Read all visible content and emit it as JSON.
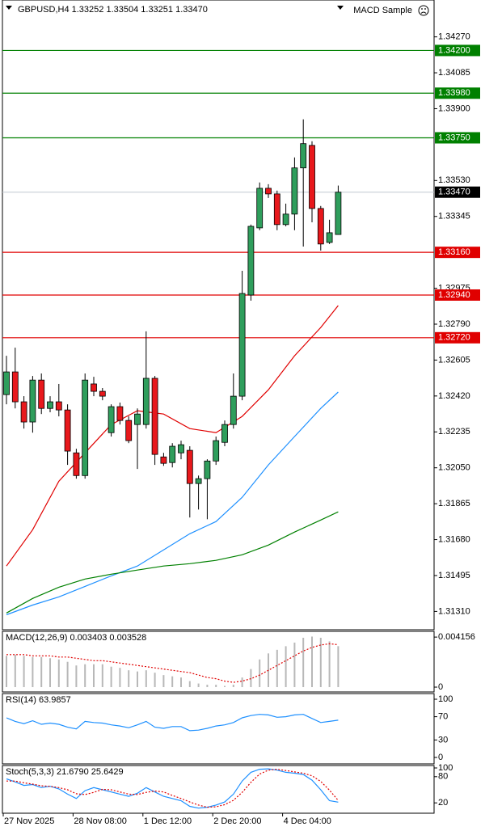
{
  "chart_data": [
    {
      "type": "candlestick",
      "title": "GBPUSD,H4 1.33252 1.33504 1.33251 1.33470",
      "expert": "MACD Sample",
      "ylim": [
        1.3122,
        1.3446
      ],
      "yticks": [
        {
          "value": 1.3427,
          "label": "1.34270"
        },
        {
          "value": 1.34085,
          "label": "1.34085"
        },
        {
          "value": 1.339,
          "label": "1.33900"
        },
        {
          "value": 1.3353,
          "label": "1.33530"
        },
        {
          "value": 1.33345,
          "label": "1.33345"
        },
        {
          "value": 1.32975,
          "label": "1.32975"
        },
        {
          "value": 1.3279,
          "label": "1.32790"
        },
        {
          "value": 1.32605,
          "label": "1.32605"
        },
        {
          "value": 1.3242,
          "label": "1.32420"
        },
        {
          "value": 1.32235,
          "label": "1.32235"
        },
        {
          "value": 1.3205,
          "label": "1.32050"
        },
        {
          "value": 1.31865,
          "label": "1.31865"
        },
        {
          "value": 1.3168,
          "label": "1.31680"
        },
        {
          "value": 1.31495,
          "label": "1.31495"
        },
        {
          "value": 1.3131,
          "label": "1.31310"
        }
      ],
      "xticks": [
        {
          "value": 0,
          "label": "27 Nov 2025"
        },
        {
          "value": 8,
          "label": "28 Nov 08:00"
        },
        {
          "value": 16,
          "label": "1 Dec 12:00"
        },
        {
          "value": 24,
          "label": "2 Dec 20:00"
        },
        {
          "value": 32,
          "label": "4 Dec 04:00"
        }
      ],
      "up_color": "#2f9e5c",
      "down_color": "#e8181c",
      "open": [
        1.32427,
        1.32544,
        1.3239,
        1.32286,
        1.32502,
        1.32356,
        1.3239,
        1.32348,
        1.32127,
        1.3201,
        1.32482,
        1.32444,
        1.32231,
        1.32365,
        1.32294,
        1.32273,
        1.32273,
        1.32511,
        1.32106,
        1.32077,
        1.32127,
        1.3214,
        1.31969,
        1.31994,
        1.32085,
        1.32181,
        1.32273,
        1.32419,
        1.3294,
        1.33286,
        1.3349,
        1.33461,
        1.33303,
        1.33357,
        1.33595,
        1.33711,
        1.33386,
        1.33211,
        1.33252
      ],
      "high": [
        1.32627,
        1.32669,
        1.32419,
        1.32523,
        1.32536,
        1.32419,
        1.32482,
        1.32377,
        1.32148,
        1.32536,
        1.32519,
        1.32461,
        1.32377,
        1.32386,
        1.32315,
        1.32356,
        1.32753,
        1.32523,
        1.32127,
        1.32177,
        1.3219,
        1.32161,
        1.3201,
        1.32094,
        1.32211,
        1.32294,
        1.32536,
        1.33065,
        1.33303,
        1.3352,
        1.33511,
        1.33478,
        1.33411,
        1.33649,
        1.33845,
        1.33732,
        1.33399,
        1.33328,
        1.33504
      ],
      "low": [
        1.32377,
        1.32356,
        1.32252,
        1.32231,
        1.32327,
        1.32336,
        1.32315,
        1.32065,
        1.31994,
        1.31994,
        1.32419,
        1.32398,
        1.32211,
        1.32273,
        1.32177,
        1.32044,
        1.32252,
        1.32065,
        1.3206,
        1.32052,
        1.32094,
        1.31794,
        1.31835,
        1.31785,
        1.32065,
        1.32161,
        1.32252,
        1.32398,
        1.32911,
        1.33274,
        1.3344,
        1.33274,
        1.33294,
        1.33274,
        1.3319,
        1.33315,
        1.33169,
        1.33203,
        1.33251
      ],
      "close": [
        1.32544,
        1.3239,
        1.32286,
        1.32502,
        1.32356,
        1.3239,
        1.32348,
        1.32136,
        1.3201,
        1.32502,
        1.32444,
        1.32419,
        1.32365,
        1.32294,
        1.3219,
        1.32327,
        1.32511,
        1.32119,
        1.32073,
        1.32161,
        1.32169,
        1.31969,
        1.31994,
        1.32085,
        1.3219,
        1.32273,
        1.32419,
        1.32948,
        1.33294,
        1.3349,
        1.33461,
        1.33303,
        1.33357,
        1.33595,
        1.3372,
        1.33386,
        1.33203,
        1.33261,
        1.3347
      ],
      "overlays": [
        {
          "color": "#e00000",
          "x": [
            0,
            3,
            6,
            9,
            12,
            15,
            18,
            21,
            24,
            27,
            30,
            33,
            36,
            38
          ],
          "values": [
            1.31544,
            1.31731,
            1.31981,
            1.32127,
            1.32273,
            1.32344,
            1.32327,
            1.32252,
            1.32231,
            1.32315,
            1.32452,
            1.32627,
            1.32773,
            1.32886
          ]
        },
        {
          "color": "#1e90ff",
          "x": [
            0,
            3,
            6,
            9,
            12,
            15,
            18,
            21,
            24,
            27,
            30,
            33,
            36,
            38
          ],
          "values": [
            1.31293,
            1.31343,
            1.31385,
            1.31439,
            1.31493,
            1.31544,
            1.31627,
            1.3171,
            1.31773,
            1.31898,
            1.32065,
            1.32211,
            1.32356,
            1.3244
          ]
        },
        {
          "color": "#008000",
          "x": [
            0,
            3,
            6,
            9,
            12,
            15,
            18,
            21,
            24,
            27,
            30,
            33,
            36,
            38
          ],
          "values": [
            1.31302,
            1.31377,
            1.31435,
            1.31477,
            1.31502,
            1.31523,
            1.31544,
            1.31556,
            1.31573,
            1.31602,
            1.31652,
            1.31719,
            1.31781,
            1.31823
          ]
        }
      ],
      "levels": [
        {
          "value": 1.342,
          "label": "1.34200",
          "color": "#008000"
        },
        {
          "value": 1.3398,
          "label": "1.33980",
          "color": "#008000"
        },
        {
          "value": 1.3375,
          "label": "1.33750",
          "color": "#008000"
        },
        {
          "value": 1.3316,
          "label": "1.33160",
          "color": "#e00000"
        },
        {
          "value": 1.3294,
          "label": "1.32940",
          "color": "#e00000"
        },
        {
          "value": 1.3272,
          "label": "1.32720",
          "color": "#e00000"
        }
      ],
      "price_line": {
        "value": 1.3347,
        "label": "1.33470",
        "color": "#c0c8d0"
      }
    },
    {
      "type": "macd",
      "title": "MACD(12,26,9) 0.003403 0.003528",
      "ylim": [
        -0.0002,
        0.0045
      ],
      "yticks": [
        0.004156,
        0
      ],
      "series": [
        {
          "color": "#b8b8b8",
          "values": [
            0.0026,
            0.0027,
            0.0026,
            0.0025,
            0.0025,
            0.0024,
            0.0023,
            0.0021,
            0.0018,
            0.0019,
            0.0019,
            0.0019,
            0.0017,
            0.0016,
            0.0014,
            0.0013,
            0.0014,
            0.0012,
            0.001,
            0.0009,
            0.0008,
            0.0005,
            0.0003,
            0.0002,
            0.0002,
            0.0001,
            0.0002,
            0.0008,
            0.0015,
            0.0023,
            0.0028,
            0.0031,
            0.0034,
            0.0037,
            0.0041,
            0.0042,
            0.0041,
            0.0038,
            0.003403
          ]
        },
        {
          "color": "#e00000",
          "dash": true,
          "values": [
            0.0027,
            0.0027,
            0.0027,
            0.0026,
            0.0026,
            0.0026,
            0.0025,
            0.0025,
            0.0024,
            0.0023,
            0.0022,
            0.0022,
            0.0021,
            0.002,
            0.0019,
            0.0018,
            0.0017,
            0.0016,
            0.0015,
            0.0014,
            0.0013,
            0.0012,
            0.001,
            0.0008,
            0.0007,
            0.0005,
            0.0004,
            0.0005,
            0.0007,
            0.001,
            0.0014,
            0.0018,
            0.0022,
            0.0026,
            0.003,
            0.0033,
            0.0035,
            0.0036,
            0.003528
          ]
        }
      ]
    },
    {
      "type": "line",
      "title": "RSI(14) 63.9857",
      "ylim": [
        0,
        100
      ],
      "yticks": [
        100,
        70,
        30,
        0
      ],
      "series": [
        {
          "color": "#1e90ff",
          "values": [
            68,
            62,
            58,
            63,
            57,
            59,
            57,
            52,
            49,
            62,
            60,
            59,
            56,
            54,
            51,
            56,
            62,
            52,
            50,
            53,
            53,
            46,
            47,
            50,
            54,
            56,
            60,
            68,
            72,
            74,
            73,
            69,
            70,
            73,
            74,
            67,
            60,
            62,
            63.9857
          ]
        }
      ]
    },
    {
      "type": "line",
      "title": "Stoch(5,3,3) 21.6790 25.6429",
      "ylim": [
        0,
        100
      ],
      "yticks": [
        100,
        80,
        20
      ],
      "series": [
        {
          "color": "#1e90ff",
          "values": [
            75,
            68,
            60,
            62,
            55,
            58,
            52,
            40,
            30,
            48,
            55,
            50,
            45,
            40,
            35,
            42,
            55,
            45,
            35,
            30,
            25,
            12,
            8,
            10,
            15,
            22,
            40,
            70,
            90,
            97,
            98,
            95,
            90,
            88,
            85,
            72,
            50,
            25,
            21.679
          ]
        },
        {
          "color": "#e00000",
          "dash": true,
          "values": [
            70,
            70,
            66,
            63,
            59,
            58,
            55,
            50,
            41,
            39,
            44,
            51,
            50,
            45,
            40,
            39,
            44,
            47,
            45,
            37,
            30,
            22,
            15,
            10,
            11,
            16,
            26,
            44,
            67,
            86,
            95,
            97,
            94,
            91,
            88,
            82,
            69,
            49,
            25.6429
          ]
        }
      ]
    }
  ]
}
